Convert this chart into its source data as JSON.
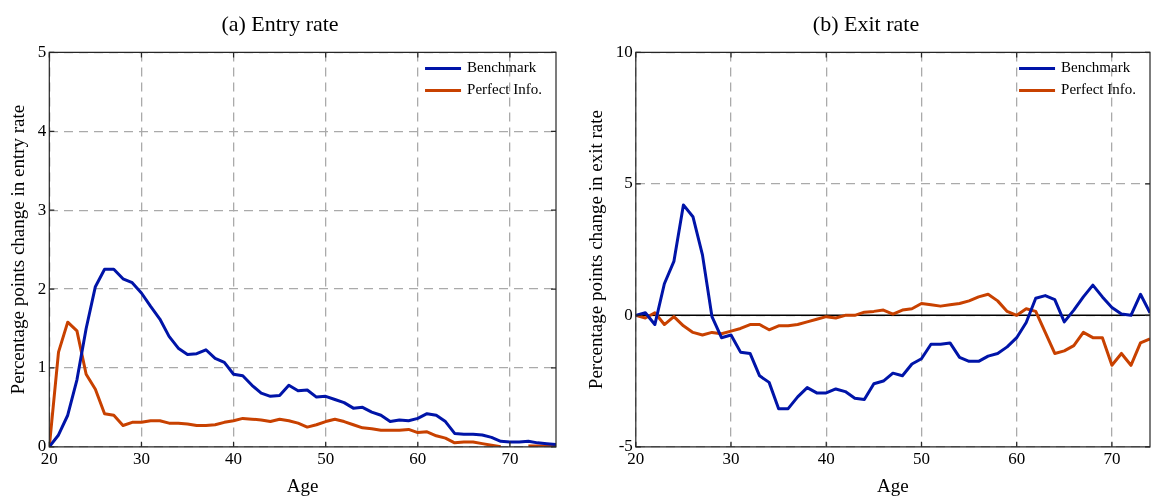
{
  "chart_data": [
    {
      "type": "line",
      "title": "(a) Entry rate",
      "xlabel": "Age",
      "ylabel": "Percentage points change in entry rate",
      "x": [
        20,
        21,
        22,
        23,
        24,
        25,
        26,
        27,
        28,
        29,
        30,
        31,
        32,
        33,
        34,
        35,
        36,
        37,
        38,
        39,
        40,
        41,
        42,
        43,
        44,
        45,
        46,
        47,
        48,
        49,
        50,
        51,
        52,
        53,
        54,
        55,
        56,
        57,
        58,
        59,
        60,
        61,
        62,
        63,
        64,
        65,
        66,
        67,
        68,
        69,
        70,
        71,
        72,
        73,
        74,
        75
      ],
      "series": [
        {
          "name": "Benchmark",
          "color": "#0014a8",
          "values": [
            0,
            0.15,
            0.4,
            0.85,
            1.5,
            2.03,
            2.25,
            2.25,
            2.13,
            2.08,
            1.95,
            1.78,
            1.62,
            1.4,
            1.25,
            1.17,
            1.18,
            1.23,
            1.12,
            1.07,
            0.92,
            0.9,
            0.78,
            0.68,
            0.64,
            0.65,
            0.78,
            0.71,
            0.72,
            0.63,
            0.64,
            0.6,
            0.56,
            0.49,
            0.5,
            0.44,
            0.4,
            0.32,
            0.34,
            0.33,
            0.36,
            0.42,
            0.4,
            0.32,
            0.17,
            0.16,
            0.16,
            0.15,
            0.12,
            0.07,
            0.06,
            0.06,
            0.07,
            0.05,
            0.04,
            0.03
          ]
        },
        {
          "name": "Perfect Info.",
          "color": "#c84100",
          "values": [
            0,
            1.2,
            1.58,
            1.47,
            0.92,
            0.73,
            0.42,
            0.4,
            0.27,
            0.31,
            0.31,
            0.33,
            0.33,
            0.3,
            0.3,
            0.29,
            0.27,
            0.27,
            0.28,
            0.31,
            0.33,
            0.36,
            0.35,
            0.34,
            0.32,
            0.35,
            0.33,
            0.3,
            0.25,
            0.28,
            0.32,
            0.35,
            0.32,
            0.28,
            0.24,
            0.23,
            0.21,
            0.21,
            0.21,
            0.22,
            0.18,
            0.19,
            0.14,
            0.11,
            0.05,
            0.06,
            0.06,
            0.04,
            0.02,
            0,
            null,
            null,
            0.01,
            0.01,
            0.01,
            0.01
          ]
        }
      ],
      "xlim": [
        20,
        75
      ],
      "xticks": [
        20,
        30,
        40,
        50,
        60,
        70
      ],
      "ylim": [
        0,
        5
      ],
      "yticks": [
        0,
        1,
        2,
        3,
        4,
        5
      ],
      "grid": true,
      "legend": "top right",
      "line_style": "solid"
    },
    {
      "type": "line",
      "title": "(b) Exit rate",
      "xlabel": "Age",
      "ylabel": "Percentage points change in exit rate",
      "x": [
        20,
        21,
        22,
        23,
        24,
        25,
        26,
        27,
        28,
        29,
        30,
        31,
        32,
        33,
        34,
        35,
        36,
        37,
        38,
        39,
        40,
        41,
        42,
        43,
        44,
        45,
        46,
        47,
        48,
        49,
        50,
        51,
        52,
        53,
        54,
        55,
        56,
        57,
        58,
        59,
        60,
        61,
        62,
        63,
        64,
        65,
        66,
        67,
        68,
        69,
        70,
        71,
        72,
        73,
        74
      ],
      "series": [
        {
          "name": "Benchmark",
          "color": "#0014a8",
          "values": [
            0,
            0.1,
            -0.35,
            1.2,
            2.05,
            4.2,
            3.75,
            2.3,
            -0.05,
            -0.85,
            -0.75,
            -1.4,
            -1.45,
            -2.3,
            -2.55,
            -3.55,
            -3.55,
            -3.1,
            -2.75,
            -2.95,
            -2.95,
            -2.8,
            -2.9,
            -3.15,
            -3.2,
            -2.6,
            -2.5,
            -2.2,
            -2.3,
            -1.85,
            -1.65,
            -1.1,
            -1.1,
            -1.05,
            -1.6,
            -1.75,
            -1.75,
            -1.55,
            -1.45,
            -1.2,
            -0.85,
            -0.27,
            0.65,
            0.75,
            0.6,
            -0.25,
            0.2,
            0.7,
            1.15,
            0.7,
            0.3,
            0.05,
            0,
            0.8,
            0.1
          ]
        },
        {
          "name": "Perfect Info.",
          "color": "#c84100",
          "values": [
            0,
            -0.1,
            0.1,
            -0.35,
            -0.05,
            -0.4,
            -0.65,
            -0.75,
            -0.65,
            -0.7,
            -0.6,
            -0.5,
            -0.35,
            -0.35,
            -0.55,
            -0.4,
            -0.4,
            -0.35,
            -0.25,
            -0.15,
            -0.05,
            -0.1,
            0,
            0,
            0.12,
            0.15,
            0.2,
            0.05,
            0.2,
            0.25,
            0.45,
            0.4,
            0.35,
            0.4,
            0.45,
            0.55,
            0.7,
            0.8,
            0.55,
            0.15,
            0,
            0.25,
            0.15,
            -0.65,
            -1.45,
            -1.35,
            -1.15,
            -0.65,
            -0.85,
            -0.85,
            -1.9,
            -1.45,
            -1.9,
            -1.05,
            -0.9
          ]
        }
      ],
      "xlim": [
        20,
        74
      ],
      "xticks": [
        20,
        30,
        40,
        50,
        60,
        70
      ],
      "ylim": [
        -5,
        10
      ],
      "yticks": [
        -5,
        0,
        5,
        10
      ],
      "ref_lines": [
        {
          "axis": "y",
          "value": 0,
          "color": "#000000"
        }
      ],
      "grid": true,
      "legend": "top right",
      "line_style": "solid"
    }
  ]
}
